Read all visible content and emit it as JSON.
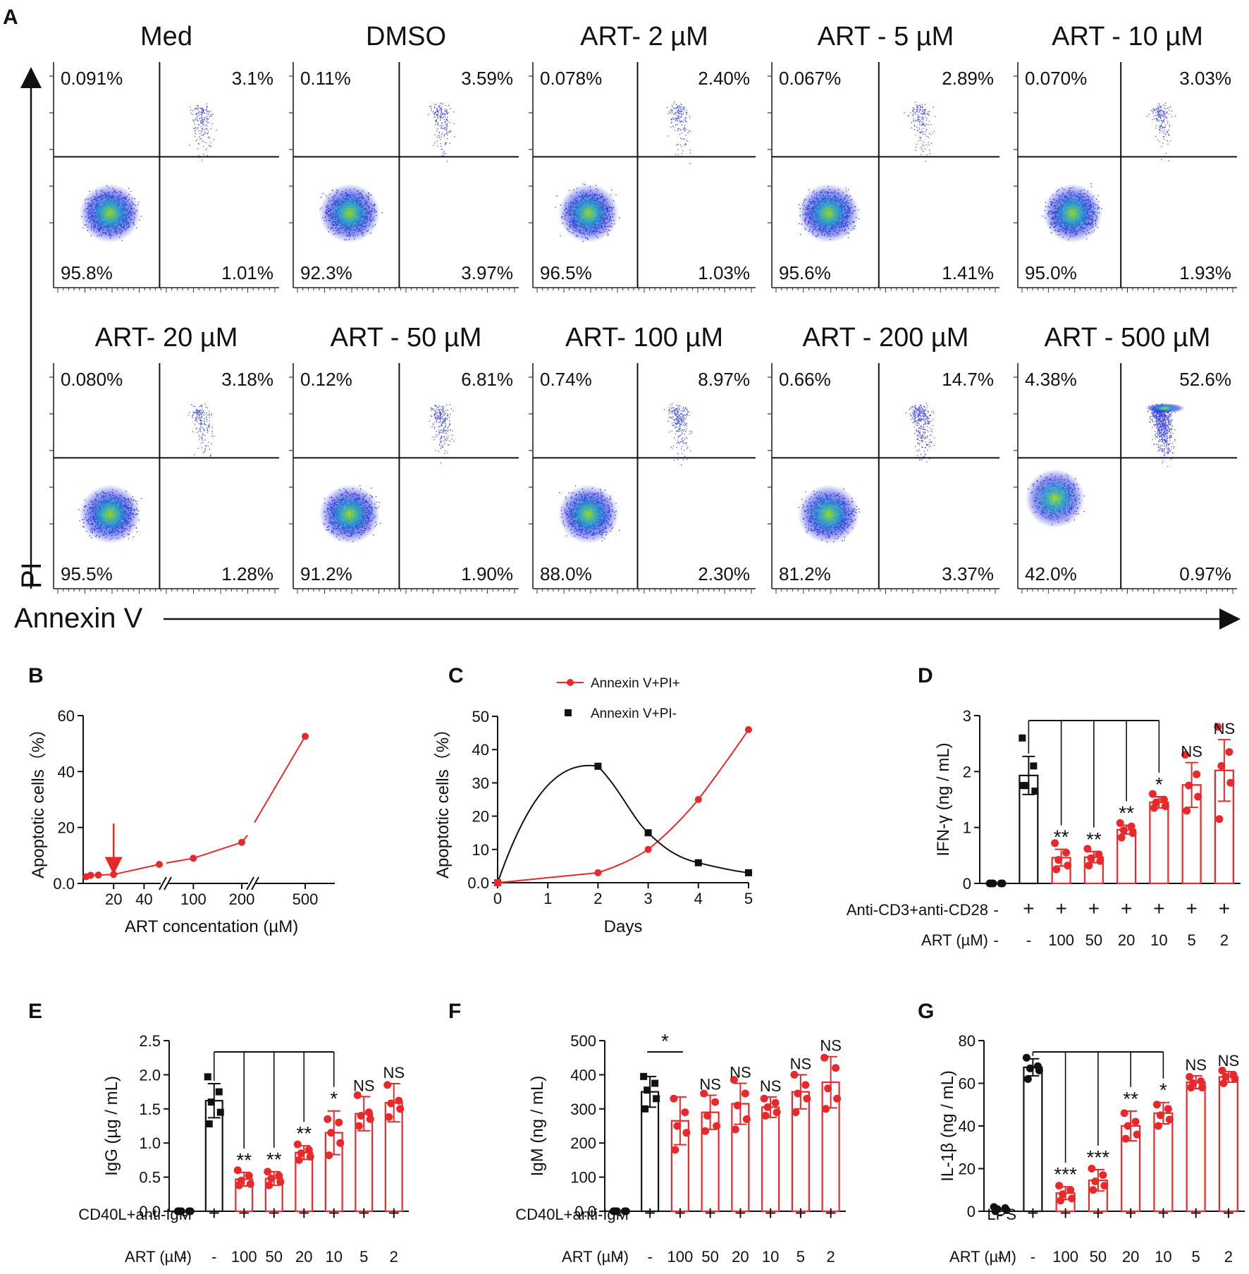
{
  "figure": {
    "panel_letters": {
      "A": "A",
      "B": "B",
      "C": "C",
      "D": "D",
      "E": "E",
      "F": "F",
      "G": "G"
    },
    "colors": {
      "black": "#111111",
      "red": "#e8292b",
      "flow_low": "#1a23d9",
      "flow_mid": "#2aa8c8",
      "flow_high": "#9be60c"
    }
  },
  "flow": {
    "x_axis_label": "Annexin V",
    "y_axis_label": "PI",
    "panels": [
      {
        "title": "Med",
        "ul": "0.091%",
        "ur": "3.1%",
        "ll": "95.8%",
        "lr": "1.01%"
      },
      {
        "title": "DMSO",
        "ul": "0.11%",
        "ur": "3.59%",
        "ll": "92.3%",
        "lr": "3.97%"
      },
      {
        "title": "ART- 2 µM",
        "ul": "0.078%",
        "ur": "2.40%",
        "ll": "96.5%",
        "lr": "1.03%"
      },
      {
        "title": "ART - 5 µM",
        "ul": "0.067%",
        "ur": "2.89%",
        "ll": "95.6%",
        "lr": "1.41%"
      },
      {
        "title": "ART - 10 µM",
        "ul": "0.070%",
        "ur": "3.03%",
        "ll": "95.0%",
        "lr": "1.93%"
      },
      {
        "title": "ART- 20 µM",
        "ul": "0.080%",
        "ur": "3.18%",
        "ll": "95.5%",
        "lr": "1.28%"
      },
      {
        "title": "ART - 50 µM",
        "ul": "0.12%",
        "ur": "6.81%",
        "ll": "91.2%",
        "lr": "1.90%"
      },
      {
        "title": "ART- 100 µM",
        "ul": "0.74%",
        "ur": "8.97%",
        "ll": "88.0%",
        "lr": "2.30%"
      },
      {
        "title": "ART - 200 µM",
        "ul": "0.66%",
        "ur": "14.7%",
        "ll": "81.2%",
        "lr": "3.37%"
      },
      {
        "title": "ART - 500 µM",
        "ul": "4.38%",
        "ur": "52.6%",
        "ll": "42.0%",
        "lr": "0.97%"
      }
    ]
  },
  "chart_data": [
    {
      "panel": "B",
      "type": "line",
      "xlabel": "ART concentation (µM)",
      "ylabel": "Apoptotic cells（%）",
      "ylim": [
        0,
        60
      ],
      "y_ticks": [
        "0.0",
        "20",
        "40",
        "60"
      ],
      "x_tick_labels": [
        "20",
        "40",
        "100",
        "200",
        "500"
      ],
      "x": [
        2,
        5,
        10,
        20,
        50,
        100,
        200,
        500
      ],
      "values": [
        2.4,
        2.9,
        3.0,
        3.2,
        6.8,
        9.0,
        14.7,
        52.6
      ],
      "arrow_at": 20,
      "axis_break": true
    },
    {
      "panel": "C",
      "type": "line",
      "xlabel": "Days",
      "ylabel": "Apoptotic cells（%）",
      "xlim": [
        0,
        5
      ],
      "ylim": [
        0,
        50
      ],
      "x_ticks": [
        "0",
        "1",
        "2",
        "3",
        "4",
        "5"
      ],
      "y_ticks": [
        "0.0",
        "10",
        "20",
        "30",
        "40",
        "50"
      ],
      "series": [
        {
          "name": "Annexin V+PI+",
          "x": [
            0,
            2,
            3,
            4,
            5
          ],
          "values": [
            0,
            3,
            10,
            25,
            46
          ]
        },
        {
          "name": "Annexin V+PI-",
          "x": [
            0,
            2,
            3,
            4,
            5
          ],
          "values": [
            0,
            35,
            15,
            6,
            3
          ]
        }
      ]
    },
    {
      "panel": "D",
      "type": "bar",
      "ylabel": "IFN-γ (ng / mL)",
      "ylim": [
        0,
        3
      ],
      "y_ticks": [
        "0",
        "1",
        "2",
        "3"
      ],
      "stim_label": "Anti-CD3+anti-CD28",
      "art_label": "ART (µM)",
      "stim_row": [
        "-",
        "+",
        "+",
        "+",
        "+",
        "+",
        "+",
        "+"
      ],
      "art_row": [
        "-",
        "-",
        "100",
        "50",
        "20",
        "10",
        "5",
        "2"
      ],
      "values": [
        0.0,
        1.93,
        0.46,
        0.47,
        0.96,
        1.45,
        1.76,
        2.02
      ],
      "errors": [
        0.02,
        0.34,
        0.15,
        0.1,
        0.08,
        0.1,
        0.4,
        0.55
      ],
      "points": [
        [
          0,
          0,
          0,
          0,
          0
        ],
        [
          2.6,
          2.1,
          1.75,
          1.65,
          1.75
        ],
        [
          0.72,
          0.55,
          0.42,
          0.32,
          0.25
        ],
        [
          0.62,
          0.52,
          0.45,
          0.4,
          0.32
        ],
        [
          1.08,
          1.02,
          0.95,
          0.9,
          0.82
        ],
        [
          1.6,
          1.5,
          1.45,
          1.38,
          1.35
        ],
        [
          2.3,
          1.95,
          1.75,
          1.55,
          1.3
        ],
        [
          2.8,
          2.35,
          2.1,
          1.8,
          1.15
        ]
      ],
      "colors": [
        "black",
        "black",
        "red",
        "red",
        "red",
        "red",
        "red",
        "red"
      ],
      "bracket": {
        "from": 1,
        "to_list": [
          2,
          3,
          4,
          5
        ]
      },
      "sig": [
        "",
        "",
        "**",
        "**",
        "**",
        "*",
        "NS",
        "NS"
      ]
    },
    {
      "panel": "E",
      "type": "bar",
      "ylabel": "IgG (µg / mL)",
      "ylim": [
        0,
        2.5
      ],
      "y_ticks": [
        "0.0",
        "0.5",
        "1.0",
        "1.5",
        "2.0",
        "2.5"
      ],
      "stim_label": "CD40L+anti-IgM",
      "art_label": "ART (µM)",
      "stim_row": [
        "-",
        "+",
        "+",
        "+",
        "+",
        "+",
        "+",
        "+"
      ],
      "art_row": [
        "-",
        "-",
        "100",
        "50",
        "20",
        "10",
        "5",
        "2"
      ],
      "values": [
        0.0,
        1.62,
        0.47,
        0.48,
        0.86,
        1.15,
        1.43,
        1.59
      ],
      "errors": [
        0.02,
        0.25,
        0.1,
        0.1,
        0.1,
        0.32,
        0.25,
        0.28
      ],
      "points": [
        [
          0,
          0,
          0,
          0,
          0
        ],
        [
          1.97,
          1.75,
          1.6,
          1.45,
          1.28
        ],
        [
          0.6,
          0.52,
          0.45,
          0.4,
          0.38
        ],
        [
          0.58,
          0.52,
          0.48,
          0.43,
          0.38
        ],
        [
          0.98,
          0.9,
          0.85,
          0.8,
          0.75
        ],
        [
          1.35,
          1.3,
          1.15,
          1.0,
          0.82
        ],
        [
          1.7,
          1.45,
          1.4,
          1.35,
          1.25
        ],
        [
          1.85,
          1.62,
          1.58,
          1.5,
          1.38
        ]
      ],
      "colors": [
        "black",
        "black",
        "red",
        "red",
        "red",
        "red",
        "red",
        "red"
      ],
      "bracket": {
        "from": 1,
        "to_list": [
          2,
          3,
          4,
          5
        ]
      },
      "sig": [
        "",
        "",
        "**",
        "**",
        "**",
        "*",
        "NS",
        "NS"
      ]
    },
    {
      "panel": "F",
      "type": "bar",
      "ylabel": "IgM (ng / mL)",
      "ylim": [
        0,
        500
      ],
      "y_ticks": [
        "0.0",
        "100",
        "200",
        "300",
        "400",
        "500"
      ],
      "stim_label": "CD40L+anti-IgM",
      "art_label": "ART (µM)",
      "stim_row": [
        "-",
        "+",
        "+",
        "+",
        "+",
        "+",
        "+",
        "+"
      ],
      "art_row": [
        "-",
        "-",
        "100",
        "50",
        "20",
        "10",
        "5",
        "2"
      ],
      "values": [
        0,
        350,
        265,
        290,
        315,
        305,
        350,
        378
      ],
      "errors": [
        3,
        45,
        70,
        50,
        60,
        30,
        50,
        75
      ],
      "points": [
        [
          0,
          0,
          0,
          0,
          0
        ],
        [
          395,
          375,
          355,
          330,
          300
        ],
        [
          330,
          290,
          250,
          230,
          180
        ],
        [
          345,
          320,
          280,
          250,
          235
        ],
        [
          385,
          345,
          310,
          270,
          240
        ],
        [
          330,
          318,
          305,
          290,
          280
        ],
        [
          400,
          370,
          345,
          330,
          290
        ],
        [
          450,
          420,
          360,
          330,
          300
        ]
      ],
      "colors": [
        "black",
        "black",
        "red",
        "red",
        "red",
        "red",
        "red",
        "red"
      ],
      "bracket_single": {
        "from": 1,
        "to": 2,
        "label": "*"
      },
      "sig": [
        "",
        "",
        "",
        "NS",
        "NS",
        "NS",
        "NS",
        "NS"
      ]
    },
    {
      "panel": "G",
      "type": "bar",
      "ylabel": "IL-1β (ng / mL)",
      "ylim": [
        0,
        80
      ],
      "y_ticks": [
        "0",
        "20",
        "40",
        "60",
        "80"
      ],
      "stim_label": "LPS",
      "art_label": "ART (µM)",
      "stim_row": [
        "-",
        "+",
        "+",
        "+",
        "+",
        "+",
        "+",
        "+"
      ],
      "art_row": [
        "-",
        "-",
        "100",
        "50",
        "20",
        "10",
        "5",
        "2"
      ],
      "values": [
        1.0,
        67.5,
        8.5,
        14.5,
        40,
        46,
        60.5,
        63
      ],
      "errors": [
        0.5,
        4,
        3,
        5,
        7,
        5,
        3,
        2.5
      ],
      "points": [
        [
          2,
          1.5,
          1,
          0.5,
          0
        ],
        [
          72,
          68,
          67,
          66,
          62
        ],
        [
          12,
          10,
          8,
          6,
          5
        ],
        [
          20,
          17,
          14,
          12,
          10
        ],
        [
          46,
          42,
          40,
          36,
          34
        ],
        [
          50,
          48,
          45,
          43,
          40
        ],
        [
          63,
          61,
          60,
          58,
          58
        ],
        [
          66,
          64,
          63,
          62,
          60
        ]
      ],
      "colors": [
        "black",
        "black",
        "red",
        "red",
        "red",
        "red",
        "red",
        "red"
      ],
      "bracket": {
        "from": 1,
        "to_list": [
          2,
          3,
          4,
          5
        ]
      },
      "sig": [
        "",
        "",
        "***",
        "***",
        "**",
        "*",
        "NS",
        "NS"
      ]
    }
  ]
}
